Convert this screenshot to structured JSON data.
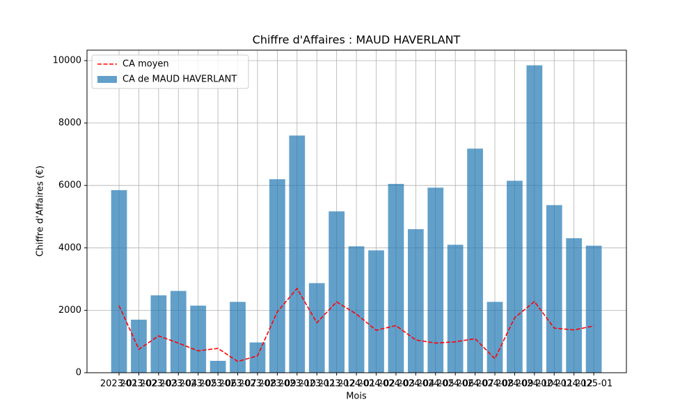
{
  "chart_data": {
    "type": "bar",
    "title": "Chiffre d'Affaires : MAUD HAVERLANT",
    "xlabel": "Mois",
    "ylabel": "Chiffre d'Affaires (€)",
    "categories": [
      "2023-01",
      "2023-02",
      "2023-03",
      "2023-04",
      "2023-05",
      "2023-06",
      "2023-07",
      "2023-08",
      "2023-09",
      "2023-10",
      "2023-11",
      "2023-12",
      "2024-01",
      "2024-02",
      "2024-03",
      "2024-04",
      "2024-05",
      "2024-06",
      "2024-07",
      "2024-08",
      "2024-09",
      "2024-10",
      "2024-11",
      "2024-12",
      "2025-01"
    ],
    "series": [
      {
        "name": "CA moyen",
        "type": "line",
        "color": "#ff0000",
        "values": [
          2150,
          750,
          1180,
          950,
          700,
          780,
          360,
          540,
          1950,
          2700,
          1600,
          2270,
          1880,
          1360,
          1510,
          1050,
          950,
          990,
          1090,
          450,
          1760,
          2280,
          1430,
          1370,
          1500
        ]
      },
      {
        "name": "CA de MAUD HAVERLANT",
        "type": "bar",
        "color": "#1f77b4",
        "values": [
          5850,
          1700,
          2480,
          2620,
          2150,
          380,
          2270,
          970,
          6200,
          7600,
          2870,
          5170,
          4050,
          3920,
          6050,
          4600,
          5930,
          4100,
          7180,
          2270,
          6150,
          9850,
          5370,
          4310,
          4070
        ]
      }
    ],
    "ylim": [
      0,
      10335
    ],
    "yticks": [
      0,
      2000,
      4000,
      6000,
      8000,
      10000
    ],
    "grid": true,
    "legend": "upper left"
  }
}
